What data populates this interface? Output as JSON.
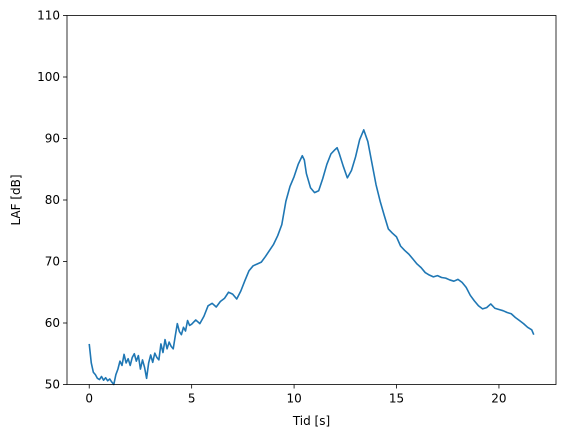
{
  "chart_data": {
    "type": "line",
    "title": "",
    "xlabel": "Tid [s]",
    "ylabel": "LAF [dB]",
    "xlim": [
      -1.085,
      22.785
    ],
    "ylim": [
      50,
      110
    ],
    "x_ticks": [
      0,
      5,
      10,
      15,
      20
    ],
    "y_ticks": [
      50,
      60,
      70,
      80,
      90,
      100,
      110
    ],
    "grid": false,
    "legend": "none",
    "series": [
      {
        "color": "#1f77b4",
        "points": [
          [
            0.0,
            56.6
          ],
          [
            0.1,
            53.5
          ],
          [
            0.2,
            52.0
          ],
          [
            0.3,
            51.6
          ],
          [
            0.4,
            51.0
          ],
          [
            0.5,
            50.8
          ],
          [
            0.6,
            51.3
          ],
          [
            0.7,
            50.7
          ],
          [
            0.8,
            51.1
          ],
          [
            0.9,
            50.6
          ],
          [
            1.0,
            50.9
          ],
          [
            1.1,
            50.4
          ],
          [
            1.2,
            50.0
          ],
          [
            1.3,
            51.6
          ],
          [
            1.4,
            52.5
          ],
          [
            1.5,
            53.8
          ],
          [
            1.6,
            53.1
          ],
          [
            1.7,
            54.9
          ],
          [
            1.8,
            53.5
          ],
          [
            1.9,
            54.2
          ],
          [
            2.0,
            53.1
          ],
          [
            2.1,
            54.4
          ],
          [
            2.2,
            55.0
          ],
          [
            2.3,
            53.8
          ],
          [
            2.4,
            54.7
          ],
          [
            2.5,
            52.5
          ],
          [
            2.6,
            54.0
          ],
          [
            2.7,
            52.8
          ],
          [
            2.8,
            51.0
          ],
          [
            2.9,
            53.5
          ],
          [
            3.0,
            54.8
          ],
          [
            3.1,
            53.6
          ],
          [
            3.2,
            55.1
          ],
          [
            3.3,
            54.4
          ],
          [
            3.4,
            54.0
          ],
          [
            3.5,
            56.6
          ],
          [
            3.6,
            55.2
          ],
          [
            3.7,
            57.3
          ],
          [
            3.8,
            55.8
          ],
          [
            3.9,
            56.9
          ],
          [
            4.0,
            56.2
          ],
          [
            4.1,
            55.8
          ],
          [
            4.2,
            57.9
          ],
          [
            4.3,
            59.9
          ],
          [
            4.4,
            58.6
          ],
          [
            4.5,
            58.1
          ],
          [
            4.6,
            59.3
          ],
          [
            4.7,
            58.7
          ],
          [
            4.8,
            60.4
          ],
          [
            4.9,
            59.6
          ],
          [
            5.0,
            59.8
          ],
          [
            5.2,
            60.5
          ],
          [
            5.4,
            59.9
          ],
          [
            5.6,
            61.1
          ],
          [
            5.8,
            62.8
          ],
          [
            6.0,
            63.2
          ],
          [
            6.2,
            62.6
          ],
          [
            6.4,
            63.5
          ],
          [
            6.6,
            64.0
          ],
          [
            6.8,
            65.0
          ],
          [
            7.0,
            64.7
          ],
          [
            7.2,
            63.9
          ],
          [
            7.4,
            65.2
          ],
          [
            7.6,
            66.9
          ],
          [
            7.8,
            68.5
          ],
          [
            8.0,
            69.3
          ],
          [
            8.2,
            69.6
          ],
          [
            8.4,
            69.9
          ],
          [
            8.6,
            70.8
          ],
          [
            8.8,
            71.8
          ],
          [
            9.0,
            72.8
          ],
          [
            9.2,
            74.2
          ],
          [
            9.4,
            76.0
          ],
          [
            9.6,
            79.8
          ],
          [
            9.8,
            82.2
          ],
          [
            10.0,
            83.8
          ],
          [
            10.2,
            85.8
          ],
          [
            10.4,
            87.2
          ],
          [
            10.5,
            86.5
          ],
          [
            10.6,
            84.3
          ],
          [
            10.8,
            82.0
          ],
          [
            11.0,
            81.2
          ],
          [
            11.2,
            81.5
          ],
          [
            11.4,
            83.5
          ],
          [
            11.6,
            85.8
          ],
          [
            11.8,
            87.5
          ],
          [
            12.0,
            88.2
          ],
          [
            12.1,
            88.5
          ],
          [
            12.2,
            87.6
          ],
          [
            12.4,
            85.5
          ],
          [
            12.6,
            83.6
          ],
          [
            12.8,
            84.8
          ],
          [
            13.0,
            87.0
          ],
          [
            13.2,
            89.8
          ],
          [
            13.4,
            91.4
          ],
          [
            13.6,
            89.5
          ],
          [
            13.8,
            86.0
          ],
          [
            14.0,
            82.5
          ],
          [
            14.2,
            79.8
          ],
          [
            14.4,
            77.5
          ],
          [
            14.6,
            75.3
          ],
          [
            14.8,
            74.6
          ],
          [
            15.0,
            74.0
          ],
          [
            15.2,
            72.5
          ],
          [
            15.4,
            71.8
          ],
          [
            15.6,
            71.2
          ],
          [
            15.8,
            70.4
          ],
          [
            16.0,
            69.6
          ],
          [
            16.2,
            69.0
          ],
          [
            16.4,
            68.2
          ],
          [
            16.6,
            67.8
          ],
          [
            16.8,
            67.5
          ],
          [
            17.0,
            67.7
          ],
          [
            17.2,
            67.4
          ],
          [
            17.4,
            67.3
          ],
          [
            17.6,
            67.0
          ],
          [
            17.8,
            66.8
          ],
          [
            18.0,
            67.1
          ],
          [
            18.2,
            66.6
          ],
          [
            18.4,
            65.8
          ],
          [
            18.6,
            64.5
          ],
          [
            18.8,
            63.6
          ],
          [
            19.0,
            62.8
          ],
          [
            19.2,
            62.3
          ],
          [
            19.4,
            62.5
          ],
          [
            19.6,
            63.1
          ],
          [
            19.8,
            62.4
          ],
          [
            20.0,
            62.2
          ],
          [
            20.2,
            62.0
          ],
          [
            20.4,
            61.7
          ],
          [
            20.6,
            61.5
          ],
          [
            20.8,
            60.9
          ],
          [
            21.0,
            60.4
          ],
          [
            21.2,
            59.9
          ],
          [
            21.4,
            59.3
          ],
          [
            21.6,
            58.9
          ],
          [
            21.7,
            58.1
          ]
        ]
      }
    ]
  }
}
